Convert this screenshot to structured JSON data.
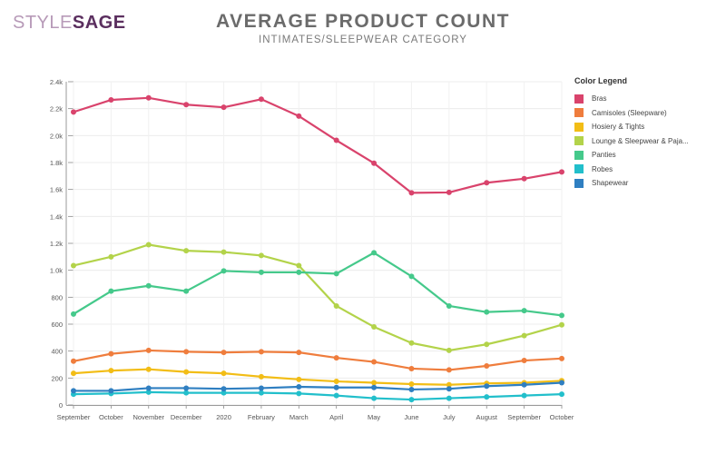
{
  "brand": {
    "part1": "STYLE",
    "part2": "SAGE"
  },
  "chart_data": {
    "type": "line",
    "title": "AVERAGE PRODUCT COUNT",
    "subtitle": "INTIMATES/SLEEPWEAR CATEGORY",
    "xlabel": "",
    "ylabel": "",
    "categories": [
      "September",
      "October",
      "November",
      "December",
      "2020",
      "February",
      "March",
      "April",
      "May",
      "June",
      "July",
      "August",
      "September",
      "October"
    ],
    "ylim": [
      0,
      2400
    ],
    "yticks": [
      {
        "v": 0,
        "label": "0"
      },
      {
        "v": 200,
        "label": "200"
      },
      {
        "v": 400,
        "label": "400"
      },
      {
        "v": 600,
        "label": "600"
      },
      {
        "v": 800,
        "label": "800"
      },
      {
        "v": 1000,
        "label": "1.0k"
      },
      {
        "v": 1200,
        "label": "1.2k"
      },
      {
        "v": 1400,
        "label": "1.4k"
      },
      {
        "v": 1600,
        "label": "1.6k"
      },
      {
        "v": 1800,
        "label": "1.8k"
      },
      {
        "v": 2000,
        "label": "2.0k"
      },
      {
        "v": 2200,
        "label": "2.2k"
      },
      {
        "v": 2400,
        "label": "2.4k"
      }
    ],
    "grid": true,
    "legend_title": "Color Legend",
    "legend_position": "right",
    "series": [
      {
        "name": "Bras",
        "color": "#d9436c",
        "values": [
          2175,
          2265,
          2280,
          2230,
          2210,
          2270,
          2145,
          1965,
          1795,
          1575,
          1578,
          1650,
          1680,
          1730
        ]
      },
      {
        "name": "Camisoles (Sleepware)",
        "color": "#ef7d3d",
        "values": [
          325,
          380,
          405,
          395,
          390,
          395,
          390,
          350,
          320,
          270,
          260,
          290,
          330,
          345
        ]
      },
      {
        "name": "Hosiery & Tights",
        "color": "#f2bd16",
        "values": [
          235,
          255,
          265,
          245,
          235,
          210,
          190,
          175,
          165,
          155,
          150,
          160,
          165,
          180
        ]
      },
      {
        "name": "Lounge & Sleepwear & Paja...",
        "color": "#b3d34a",
        "values": [
          1035,
          1100,
          1190,
          1145,
          1135,
          1110,
          1035,
          735,
          580,
          460,
          405,
          450,
          515,
          595
        ]
      },
      {
        "name": "Panties",
        "color": "#45c98b",
        "values": [
          675,
          845,
          885,
          845,
          995,
          985,
          985,
          975,
          1130,
          955,
          735,
          690,
          700,
          665
        ]
      },
      {
        "name": "Robes",
        "color": "#22bfcb",
        "values": [
          80,
          85,
          95,
          90,
          90,
          90,
          85,
          70,
          50,
          40,
          50,
          60,
          70,
          80
        ]
      },
      {
        "name": "Shapewear",
        "color": "#2f7fc1",
        "values": [
          105,
          105,
          125,
          125,
          120,
          125,
          135,
          130,
          130,
          115,
          120,
          140,
          150,
          165
        ]
      }
    ]
  }
}
